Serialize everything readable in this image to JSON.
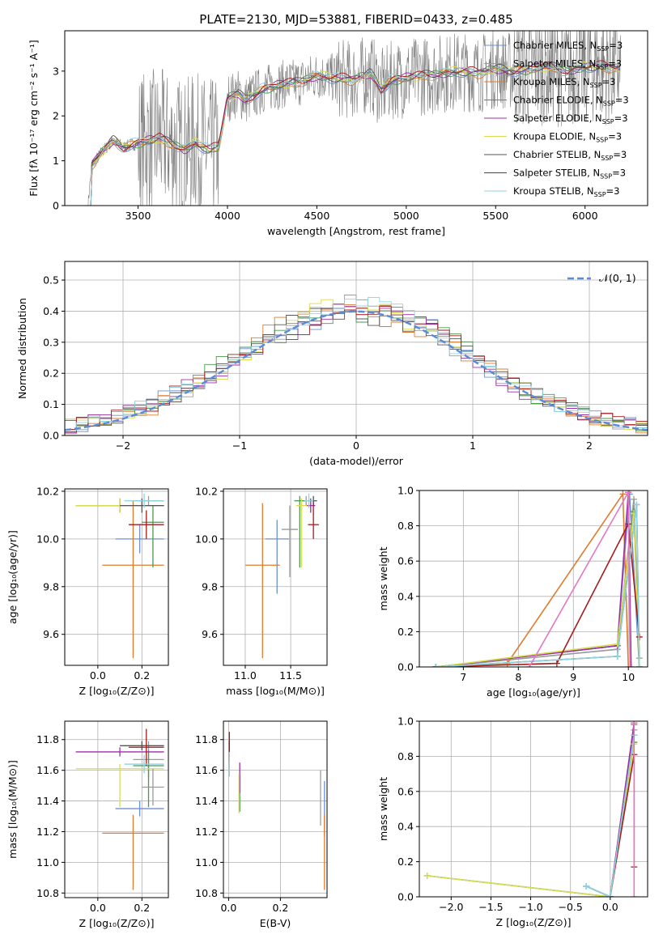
{
  "title": "PLATE=2130, MJD=53881, FIBERID=0433, z=0.485",
  "models": [
    {
      "name": "Chabrier MILES",
      "color": "#6b8fd6"
    },
    {
      "name": "Salpeter MILES",
      "color": "#9a9a9a"
    },
    {
      "name": "Kroupa MILES",
      "color": "#e07b2d"
    },
    {
      "name": "Chabrier ELODIE",
      "color": "#4a9a4a"
    },
    {
      "name": "Salpeter ELODIE",
      "color": "#9b30a8"
    },
    {
      "name": "Kroupa ELODIE",
      "color": "#d8dc52"
    },
    {
      "name": "Chabrier STELIB",
      "color": "#555555"
    },
    {
      "name": "Salpeter STELIB",
      "color": "#a51c1c"
    },
    {
      "name": "Kroupa STELIB",
      "color": "#8ed3df"
    }
  ],
  "legend_suffix": ", N",
  "legend_sub": "SSP",
  "legend_eq": "=3",
  "chart_data": [
    {
      "type": "line",
      "id": "spectrum",
      "xlabel": "wavelength [Angstrom, rest frame]",
      "ylabel": "Flux [fλ 10⁻¹⁷ erg cm⁻² s⁻¹ A⁻¹]",
      "xlim": [
        3090,
        6350
      ],
      "ylim": [
        0,
        3.9
      ],
      "xticks": [
        3500,
        4000,
        4500,
        5000,
        5500,
        6000
      ],
      "yticks": [
        0,
        1,
        2,
        3
      ],
      "legend": "upper right",
      "grid": false,
      "data_series": {
        "name": "data",
        "color": "#7f7f7f",
        "x_start": 3220,
        "x_end": 6200
      },
      "model_anchor_x": [
        3220,
        3240,
        3300,
        3360,
        3420,
        3500,
        3560,
        3620,
        3700,
        3760,
        3820,
        3900,
        3950,
        4000,
        4060,
        4100,
        4200,
        4300,
        4400,
        4500,
        4600,
        4700,
        4800,
        4860,
        4920,
        5000,
        5100,
        5200,
        5300,
        5400,
        5500,
        5600,
        5700,
        5800,
        5900,
        6000,
        6100,
        6200
      ],
      "model_anchor_y": [
        0,
        0.9,
        1.2,
        1.45,
        1.3,
        1.4,
        1.45,
        1.5,
        1.35,
        1.25,
        1.4,
        1.25,
        1.3,
        2.4,
        2.5,
        2.35,
        2.6,
        2.7,
        2.75,
        2.9,
        2.85,
        2.8,
        2.95,
        2.6,
        2.8,
        2.85,
        2.9,
        2.95,
        3.0,
        2.95,
        3.05,
        3.0,
        3.05,
        3.1,
        3.0,
        3.1,
        3.1,
        3.05
      ]
    },
    {
      "type": "histogram",
      "id": "residuals",
      "xlabel": "(data-model)/error",
      "ylabel": "Normed distribution",
      "xlim": [
        -2.5,
        2.5
      ],
      "ylim": [
        0,
        0.56
      ],
      "xticks": [
        -2,
        -1,
        0,
        1,
        2
      ],
      "yticks": [
        0.0,
        0.1,
        0.2,
        0.3,
        0.4,
        0.5
      ],
      "bin_width": 0.1,
      "grid": true,
      "gaussian": {
        "label": "𝒩(0, 1)",
        "mu": 0,
        "sigma": 1,
        "color": "#5b8ad8"
      },
      "legend": "upper right"
    },
    {
      "type": "errorbar",
      "id": "age-vs-Z",
      "xlabel": "Z [log₁₀(Z/Z⊙)]",
      "ylabel": "age  [log₁₀(age/yr)]",
      "xlim": [
        -0.15,
        0.32
      ],
      "ylim": [
        9.47,
        10.21
      ],
      "xticks": [
        0.0,
        0.2
      ],
      "yticks": [
        9.6,
        9.8,
        10.0,
        10.2
      ],
      "points": [
        {
          "x": 0.19,
          "xerr": [
            0.11,
            0.11
          ],
          "y": 10.0,
          "yerr": [
            0.06,
            0.06
          ],
          "model": 0
        },
        {
          "x": 0.23,
          "xerr": [
            0.07,
            0.07
          ],
          "y": 10.16,
          "yerr": [
            0.02,
            0.02
          ],
          "model": 1
        },
        {
          "x": 0.16,
          "xerr": [
            0.14,
            0.14
          ],
          "y": 9.89,
          "yerr": [
            0.39,
            0.27
          ],
          "model": 2
        },
        {
          "x": 0.25,
          "xerr": [
            0.05,
            0.05
          ],
          "y": 10.07,
          "yerr": [
            0.19,
            0.07
          ],
          "model": 3
        },
        {
          "x": 0.1,
          "xerr": [
            0.2,
            0.2
          ],
          "y": 10.14,
          "yerr": [
            0.03,
            0.03
          ],
          "model": 4
        },
        {
          "x": 0.1,
          "xerr": [
            0.2,
            0.2
          ],
          "y": 10.14,
          "yerr": [
            0.03,
            0.03
          ],
          "model": 5
        },
        {
          "x": 0.2,
          "xerr": [
            0.1,
            0.1
          ],
          "y": 10.14,
          "yerr": [
            0.03,
            0.03
          ],
          "model": 6
        },
        {
          "x": 0.22,
          "xerr": [
            0.08,
            0.08
          ],
          "y": 10.06,
          "yerr": [
            0.06,
            0.06
          ],
          "model": 7
        },
        {
          "x": 0.21,
          "xerr": [
            0.09,
            0.09
          ],
          "y": 10.16,
          "yerr": [
            0.03,
            0.03
          ],
          "model": 8
        }
      ]
    },
    {
      "type": "errorbar",
      "id": "age-vs-mass",
      "xlabel": "mass [log₁₀(M/M⊙)]",
      "ylabel": "",
      "xlim": [
        10.76,
        11.9
      ],
      "ylim": [
        9.47,
        10.21
      ],
      "xticks": [
        11.0,
        11.5
      ],
      "yticks": [
        9.6,
        9.8,
        10.0,
        10.2
      ],
      "points": [
        {
          "x": 11.35,
          "xerr": [
            0.13,
            0.13
          ],
          "y": 10.0,
          "yerr": [
            0.23,
            0.08
          ],
          "model": 0
        },
        {
          "x": 11.67,
          "xerr": [
            0.05,
            0.05
          ],
          "y": 10.16,
          "yerr": [
            0.02,
            0.02
          ],
          "model": 1
        },
        {
          "x": 11.19,
          "xerr": [
            0.19,
            0.19
          ],
          "y": 9.89,
          "yerr": [
            0.39,
            0.26
          ],
          "model": 2
        },
        {
          "x": 11.6,
          "xerr": [
            0.06,
            0.06
          ],
          "y": 10.16,
          "yerr": [
            0.28,
            0.02
          ],
          "model": 3
        },
        {
          "x": 11.72,
          "xerr": [
            0.05,
            0.05
          ],
          "y": 10.14,
          "yerr": [
            0.03,
            0.03
          ],
          "model": 4
        },
        {
          "x": 11.62,
          "xerr": [
            0.06,
            0.06
          ],
          "y": 10.14,
          "yerr": [
            0.26,
            0.03
          ],
          "model": 5
        },
        {
          "x": 11.75,
          "xerr": [
            0.04,
            0.04
          ],
          "y": 10.16,
          "yerr": [
            0.02,
            0.02
          ],
          "model": 6
        },
        {
          "x": 11.75,
          "xerr": [
            0.06,
            0.06
          ],
          "y": 10.06,
          "yerr": [
            0.06,
            0.1
          ],
          "model": 7
        },
        {
          "x": 11.7,
          "xerr": [
            0.05,
            0.05
          ],
          "y": 10.16,
          "yerr": [
            0.03,
            0.03
          ],
          "model": 8
        },
        {
          "x": 11.49,
          "xerr": [
            0.09,
            0.09
          ],
          "y": 10.04,
          "yerr": [
            0.2,
            0.1
          ],
          "model": 1
        }
      ]
    },
    {
      "type": "line",
      "id": "massweight-vs-age",
      "xlabel": "age  [log₁₀(age/yr)]",
      "ylabel": "mass weight",
      "xlim": [
        6.2,
        10.35
      ],
      "ylim": [
        0,
        1
      ],
      "xticks": [
        7,
        8,
        9,
        10
      ],
      "yticks": [
        0.0,
        0.2,
        0.4,
        0.6,
        0.8,
        1.0
      ],
      "grid": true,
      "series": [
        {
          "model": 0,
          "x": [
            6.5,
            9.8,
            10.02,
            10.2
          ],
          "y": [
            0.0,
            0.12,
            0.98,
            0.0
          ]
        },
        {
          "model": 1,
          "x": [
            6.5,
            9.8,
            10.1,
            10.2
          ],
          "y": [
            0.0,
            0.1,
            0.95,
            0.05
          ]
        },
        {
          "model": 2,
          "x": [
            6.5,
            7.8,
            9.9,
            10.0
          ],
          "y": [
            0.0,
            0.02,
            0.98,
            0.0
          ]
        },
        {
          "model": 3,
          "x": [
            6.5,
            9.8,
            10.1,
            10.2
          ],
          "y": [
            0.0,
            0.12,
            0.88,
            0.0
          ]
        },
        {
          "model": 4,
          "x": [
            6.5,
            9.8,
            10.0,
            10.05
          ],
          "y": [
            0.0,
            0.12,
            0.99,
            0.0
          ]
        },
        {
          "model": 5,
          "x": [
            6.5,
            9.8,
            10.1,
            10.2
          ],
          "y": [
            0.0,
            0.13,
            0.87,
            0.0
          ]
        },
        {
          "model": 6,
          "x": [
            6.5,
            9.8,
            10.15,
            10.2
          ],
          "y": [
            0.0,
            0.06,
            0.92,
            0.0
          ]
        },
        {
          "model": 7,
          "x": [
            6.5,
            8.7,
            10.0,
            10.2
          ],
          "y": [
            0.0,
            0.02,
            0.81,
            0.17
          ]
        },
        {
          "model": 8,
          "x": [
            6.5,
            9.8,
            10.15,
            10.2
          ],
          "y": [
            0.0,
            0.06,
            0.92,
            0.0
          ]
        }
      ],
      "extra_segments": [
        {
          "color": "#e377c2",
          "x": [
            8.2,
            10.0,
            10.03
          ],
          "y": [
            0.0,
            0.99,
            0.0
          ]
        }
      ]
    },
    {
      "type": "errorbar",
      "id": "mass-vs-Z",
      "xlabel": "Z [log₁₀(Z/Z⊙)]",
      "ylabel": "mass [log₁₀(M/M⊙)]",
      "xlim": [
        -0.15,
        0.32
      ],
      "ylim": [
        10.77,
        11.92
      ],
      "xticks": [
        0.0,
        0.2
      ],
      "yticks": [
        10.8,
        11.0,
        11.2,
        11.4,
        11.6,
        11.8
      ],
      "points": [
        {
          "x": 0.19,
          "xerr": [
            0.11,
            0.11
          ],
          "y": 11.35,
          "yerr": [
            0.05,
            0.05
          ],
          "model": 0
        },
        {
          "x": 0.23,
          "xerr": [
            0.07,
            0.07
          ],
          "y": 11.67,
          "yerr": [
            0.12,
            0.12
          ],
          "model": 1
        },
        {
          "x": 0.16,
          "xerr": [
            0.14,
            0.14
          ],
          "y": 11.19,
          "yerr": [
            0.37,
            0.12
          ],
          "model": 2
        },
        {
          "x": 0.23,
          "xerr": [
            0.07,
            0.07
          ],
          "y": 11.63,
          "yerr": [
            0.27,
            0.1
          ],
          "model": 3
        },
        {
          "x": 0.1,
          "xerr": [
            0.2,
            0.2
          ],
          "y": 11.72,
          "yerr": [
            0.03,
            0.03
          ],
          "model": 4
        },
        {
          "x": 0.1,
          "xerr": [
            0.2,
            0.2
          ],
          "y": 11.61,
          "yerr": [
            0.25,
            0.03
          ],
          "model": 5
        },
        {
          "x": 0.2,
          "xerr": [
            0.1,
            0.1
          ],
          "y": 11.76,
          "yerr": [
            0.03,
            0.03
          ],
          "model": 6
        },
        {
          "x": 0.22,
          "xerr": [
            0.08,
            0.08
          ],
          "y": 11.75,
          "yerr": [
            0.12,
            0.12
          ],
          "model": 7
        },
        {
          "x": 0.21,
          "xerr": [
            0.09,
            0.09
          ],
          "y": 11.64,
          "yerr": [
            0.06,
            0.06
          ],
          "model": 8
        },
        {
          "x": 0.25,
          "xerr": [
            0.05,
            0.05
          ],
          "y": 11.49,
          "yerr": [
            0.12,
            0.12
          ],
          "model": 1
        }
      ]
    },
    {
      "type": "errorbar",
      "id": "mass-vs-EBV",
      "xlabel": "E(B-V)",
      "ylabel": "",
      "xlim": [
        -0.02,
        0.38
      ],
      "ylim": [
        10.77,
        11.92
      ],
      "xticks": [
        0.0,
        0.2
      ],
      "yticks": [
        10.8,
        11.0,
        11.2,
        11.4,
        11.6,
        11.8
      ],
      "points": [
        {
          "x": 0.37,
          "xerr": [
            0,
            0
          ],
          "y": 11.35,
          "yerr": [
            0.18,
            0.18
          ],
          "model": 0
        },
        {
          "x": 0.003,
          "xerr": [
            0,
            0
          ],
          "y": 11.67,
          "yerr": [
            0.08,
            0.08
          ],
          "model": 1
        },
        {
          "x": 0.37,
          "xerr": [
            0,
            0
          ],
          "y": 11.19,
          "yerr": [
            0.37,
            0.12
          ],
          "model": 2
        },
        {
          "x": 0.043,
          "xerr": [
            0,
            0
          ],
          "y": 11.45,
          "yerr": [
            0.12,
            0.12
          ],
          "model": 3
        },
        {
          "x": 0.043,
          "xerr": [
            0,
            0
          ],
          "y": 11.55,
          "yerr": [
            0.1,
            0.1
          ],
          "model": 4
        },
        {
          "x": 0.04,
          "xerr": [
            0,
            0
          ],
          "y": 11.45,
          "yerr": [
            0.13,
            0.13
          ],
          "model": 5
        },
        {
          "x": 0.003,
          "xerr": [
            0,
            0
          ],
          "y": 11.76,
          "yerr": [
            0.03,
            0.03
          ],
          "model": 6
        },
        {
          "x": 0.003,
          "xerr": [
            0,
            0
          ],
          "y": 11.75,
          "yerr": [
            0.1,
            0.1
          ],
          "model": 7
        },
        {
          "x": 0.003,
          "xerr": [
            0,
            0
          ],
          "y": 11.64,
          "yerr": [
            0.08,
            0.08
          ],
          "model": 8
        },
        {
          "x": 0.355,
          "xerr": [
            0,
            0
          ],
          "y": 11.42,
          "yerr": [
            0.18,
            0.18
          ],
          "model": 1
        }
      ]
    },
    {
      "type": "line",
      "id": "massweight-vs-Z",
      "xlabel": "Z [log₁₀(Z/Z⊙)]",
      "ylabel": "mass weight",
      "xlim": [
        -2.4,
        0.47
      ],
      "ylim": [
        0,
        1
      ],
      "xticks": [
        -2.0,
        -1.5,
        -1.0,
        -0.5,
        0.0
      ],
      "yticks": [
        0.0,
        0.2,
        0.4,
        0.6,
        0.8,
        1.0
      ],
      "grid": true,
      "series": [
        {
          "model": 0,
          "x": [
            -0.3,
            0.0,
            0.3
          ],
          "y": [
            0.06,
            0.0,
            0.98
          ]
        },
        {
          "model": 1,
          "x": [
            0.0,
            0.3
          ],
          "y": [
            0.0,
            0.95
          ]
        },
        {
          "model": 2,
          "x": [
            0.0,
            0.3
          ],
          "y": [
            0.0,
            0.98
          ]
        },
        {
          "model": 3,
          "x": [
            -2.3,
            0.0,
            0.3
          ],
          "y": [
            0.12,
            0.0,
            0.88
          ]
        },
        {
          "model": 4,
          "x": [
            0.0,
            0.3
          ],
          "y": [
            0.0,
            0.99
          ]
        },
        {
          "model": 5,
          "x": [
            -2.3,
            0.0,
            0.3
          ],
          "y": [
            0.12,
            0.0,
            0.87
          ]
        },
        {
          "model": 6,
          "x": [
            -0.3,
            0.0,
            0.3
          ],
          "y": [
            0.06,
            0.0,
            0.92
          ]
        },
        {
          "model": 7,
          "x": [
            0.0,
            0.3,
            0.3
          ],
          "y": [
            0.0,
            0.81,
            0.17
          ]
        },
        {
          "model": 8,
          "x": [
            -0.3,
            0.0,
            0.3
          ],
          "y": [
            0.06,
            0.0,
            0.92
          ]
        }
      ],
      "extra_segments": [
        {
          "color": "#e377c2",
          "x": [
            0.3,
            0.3
          ],
          "y": [
            0.0,
            0.99
          ]
        }
      ]
    }
  ]
}
